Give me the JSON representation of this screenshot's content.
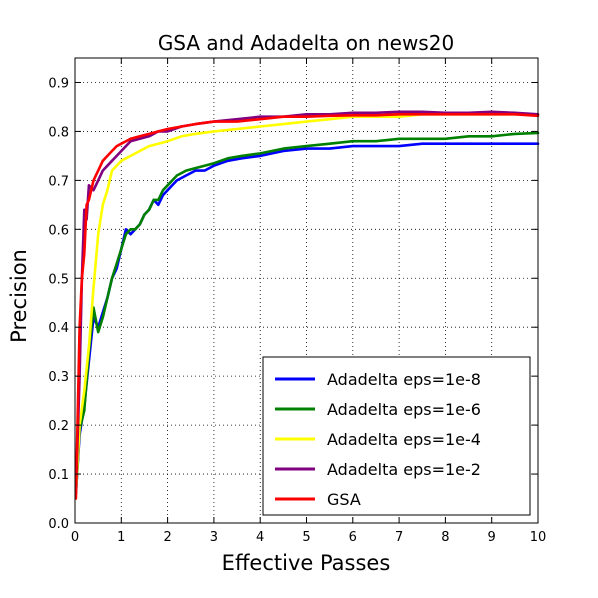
{
  "chart_data": {
    "type": "line",
    "title": "GSA and Adadelta on news20",
    "xlabel": "Effective Passes",
    "ylabel": "Precision",
    "xlim": [
      0,
      10
    ],
    "ylim": [
      0,
      0.95
    ],
    "xticks": [
      0,
      1,
      2,
      3,
      4,
      5,
      6,
      7,
      8,
      9,
      10
    ],
    "yticks": [
      0.0,
      0.1,
      0.2,
      0.3,
      0.4,
      0.5,
      0.6,
      0.7,
      0.8,
      0.9
    ],
    "grid": true,
    "grid_style": "dotted",
    "legend_position": "lower-right",
    "series": [
      {
        "name": "Adadelta eps=1e-8",
        "color": "#0000ff",
        "x": [
          0.02,
          0.1,
          0.2,
          0.3,
          0.4,
          0.5,
          0.6,
          0.7,
          0.8,
          0.9,
          1.0,
          1.1,
          1.2,
          1.3,
          1.4,
          1.5,
          1.6,
          1.7,
          1.8,
          1.9,
          2.0,
          2.2,
          2.4,
          2.6,
          2.8,
          3.0,
          3.3,
          3.6,
          4.0,
          4.5,
          5.0,
          5.5,
          6.0,
          6.5,
          7.0,
          7.5,
          8.0,
          8.5,
          9.0,
          9.5,
          10.0
        ],
        "values": [
          0.06,
          0.18,
          0.24,
          0.33,
          0.42,
          0.4,
          0.43,
          0.46,
          0.5,
          0.52,
          0.56,
          0.6,
          0.59,
          0.6,
          0.61,
          0.63,
          0.64,
          0.66,
          0.65,
          0.67,
          0.68,
          0.7,
          0.71,
          0.72,
          0.72,
          0.73,
          0.74,
          0.745,
          0.75,
          0.76,
          0.765,
          0.765,
          0.77,
          0.77,
          0.77,
          0.775,
          0.775,
          0.775,
          0.775,
          0.775,
          0.775
        ]
      },
      {
        "name": "Adadelta eps=1e-6",
        "color": "#008000",
        "x": [
          0.02,
          0.1,
          0.2,
          0.3,
          0.4,
          0.5,
          0.6,
          0.7,
          0.8,
          0.9,
          1.0,
          1.1,
          1.2,
          1.3,
          1.4,
          1.5,
          1.6,
          1.7,
          1.8,
          1.9,
          2.0,
          2.2,
          2.4,
          2.6,
          2.8,
          3.0,
          3.3,
          3.6,
          4.0,
          4.5,
          5.0,
          5.5,
          6.0,
          6.5,
          7.0,
          7.5,
          8.0,
          8.5,
          9.0,
          9.5,
          10.0
        ],
        "values": [
          0.06,
          0.19,
          0.23,
          0.35,
          0.44,
          0.39,
          0.42,
          0.46,
          0.5,
          0.53,
          0.56,
          0.59,
          0.6,
          0.6,
          0.61,
          0.63,
          0.64,
          0.66,
          0.66,
          0.68,
          0.69,
          0.71,
          0.72,
          0.725,
          0.73,
          0.735,
          0.745,
          0.75,
          0.755,
          0.765,
          0.77,
          0.775,
          0.78,
          0.78,
          0.785,
          0.785,
          0.785,
          0.79,
          0.79,
          0.795,
          0.797
        ]
      },
      {
        "name": "Adadelta eps=1e-4",
        "color": "#ffff00",
        "x": [
          0.02,
          0.1,
          0.2,
          0.3,
          0.4,
          0.5,
          0.6,
          0.7,
          0.8,
          0.9,
          1.0,
          1.2,
          1.4,
          1.6,
          1.8,
          2.0,
          2.3,
          2.6,
          3.0,
          3.5,
          4.0,
          4.5,
          5.0,
          5.5,
          6.0,
          6.5,
          7.0,
          7.5,
          8.0,
          8.5,
          9.0,
          9.5,
          10.0
        ],
        "values": [
          0.06,
          0.2,
          0.27,
          0.36,
          0.48,
          0.59,
          0.65,
          0.68,
          0.72,
          0.73,
          0.74,
          0.75,
          0.76,
          0.77,
          0.775,
          0.78,
          0.79,
          0.795,
          0.8,
          0.805,
          0.81,
          0.815,
          0.82,
          0.825,
          0.83,
          0.83,
          0.83,
          0.835,
          0.835,
          0.835,
          0.835,
          0.835,
          0.835
        ]
      },
      {
        "name": "Adadelta eps=1e-2",
        "color": "#800080",
        "x": [
          0.02,
          0.1,
          0.15,
          0.2,
          0.25,
          0.3,
          0.4,
          0.5,
          0.6,
          0.7,
          0.8,
          0.9,
          1.0,
          1.2,
          1.4,
          1.6,
          1.8,
          2.0,
          2.3,
          2.6,
          3.0,
          3.5,
          4.0,
          4.5,
          5.0,
          5.5,
          6.0,
          6.5,
          7.0,
          7.5,
          8.0,
          8.5,
          9.0,
          9.5,
          10.0
        ],
        "values": [
          0.06,
          0.3,
          0.5,
          0.64,
          0.62,
          0.69,
          0.68,
          0.7,
          0.72,
          0.73,
          0.74,
          0.75,
          0.76,
          0.78,
          0.785,
          0.79,
          0.8,
          0.8,
          0.81,
          0.815,
          0.82,
          0.825,
          0.83,
          0.83,
          0.835,
          0.835,
          0.838,
          0.838,
          0.84,
          0.84,
          0.838,
          0.838,
          0.84,
          0.838,
          0.835
        ]
      },
      {
        "name": "GSA",
        "color": "#ff0000",
        "x": [
          0.02,
          0.1,
          0.15,
          0.2,
          0.25,
          0.3,
          0.4,
          0.5,
          0.6,
          0.7,
          0.8,
          0.9,
          1.0,
          1.2,
          1.4,
          1.6,
          1.8,
          2.0,
          2.3,
          2.6,
          3.0,
          3.5,
          4.0,
          4.5,
          5.0,
          5.5,
          6.0,
          6.5,
          7.0,
          7.5,
          8.0,
          8.5,
          9.0,
          9.5,
          10.0
        ],
        "values": [
          0.05,
          0.4,
          0.5,
          0.55,
          0.65,
          0.66,
          0.7,
          0.72,
          0.74,
          0.75,
          0.76,
          0.77,
          0.775,
          0.785,
          0.79,
          0.795,
          0.8,
          0.805,
          0.81,
          0.815,
          0.82,
          0.82,
          0.825,
          0.83,
          0.83,
          0.832,
          0.833,
          0.833,
          0.835,
          0.835,
          0.835,
          0.835,
          0.835,
          0.835,
          0.832
        ]
      }
    ]
  }
}
